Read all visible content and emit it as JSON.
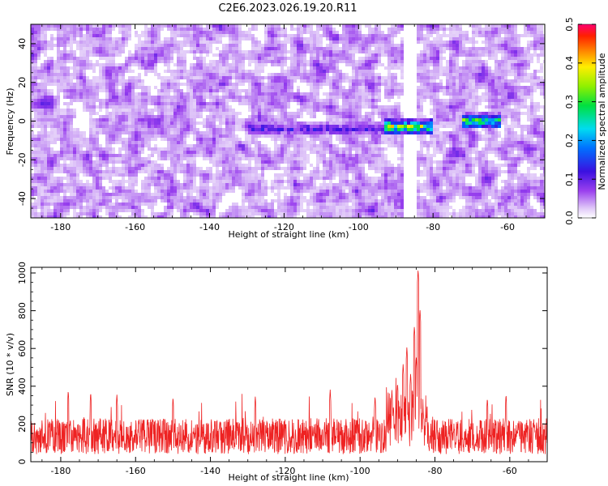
{
  "figure_title": "C2E6.2023.026.19.20.R11",
  "colors": {
    "snr_line": "#ee2222",
    "axis": "#000000",
    "background": "#ffffff"
  },
  "chart_data": [
    {
      "type": "heatmap",
      "name": "spectrogram",
      "xlabel": "Height of straight line (km)",
      "ylabel": "Frequency (Hz)",
      "xlim": [
        -188,
        -50
      ],
      "ylim": [
        -50,
        50
      ],
      "x_ticks": [
        -180,
        -160,
        -140,
        -120,
        -100,
        -80,
        -60
      ],
      "x_tick_labels": [
        "-180",
        "-160",
        "-140",
        "-120",
        "-100",
        "-80",
        "-60"
      ],
      "y_ticks": [
        -40,
        -20,
        0,
        20,
        40
      ],
      "y_tick_labels": [
        "-40",
        "-20",
        "0",
        "20",
        "40"
      ],
      "colorbar": {
        "label": "Normalized spectral amplitude",
        "range": [
          0.0,
          0.5
        ],
        "ticks": [
          0.0,
          0.1,
          0.2,
          0.3,
          0.4,
          0.5
        ],
        "tick_labels": [
          "0.0",
          "0.1",
          "0.2",
          "0.3",
          "0.4",
          "0.5"
        ]
      },
      "features": [
        {
          "description": "strong signal near 0 Hz",
          "x_range": [
            -93,
            -80
          ],
          "freq_center": -3,
          "peak_amplitude": 0.45
        },
        {
          "description": "moderate signal near 0 Hz",
          "x_range": [
            -72,
            -62
          ],
          "freq_center": 0,
          "peak_amplitude": 0.4
        },
        {
          "description": "weak band",
          "x_range": [
            -130,
            -93
          ],
          "freq_center": -4,
          "peak_amplitude": 0.15
        },
        {
          "description": "white vertical gap",
          "x_range": [
            -88,
            -84
          ]
        }
      ]
    },
    {
      "type": "line",
      "name": "snr",
      "xlabel": "Height of straight line (km)",
      "ylabel": "SNR (10 * v/v)",
      "xlim": [
        -188,
        -50
      ],
      "ylim": [
        0,
        1030
      ],
      "x_ticks": [
        -180,
        -160,
        -140,
        -120,
        -100,
        -80,
        -60
      ],
      "x_tick_labels": [
        "-180",
        "-160",
        "-140",
        "-120",
        "-100",
        "-80",
        "-60"
      ],
      "y_ticks": [
        0,
        200,
        400,
        600,
        800,
        1000
      ],
      "y_tick_labels": [
        "0",
        "200",
        "400",
        "600",
        "800",
        "1000"
      ],
      "baseline_mean": 135,
      "noise_max": 260,
      "peaks": [
        {
          "x": -84.5,
          "y": 1020
        },
        {
          "x": -84.0,
          "y": 810
        },
        {
          "x": -85.5,
          "y": 720
        },
        {
          "x": -87.5,
          "y": 610
        },
        {
          "x": -88.5,
          "y": 520
        },
        {
          "x": -90.0,
          "y": 420
        },
        {
          "x": -91.5,
          "y": 380
        },
        {
          "x": -85.0,
          "y": 560
        },
        {
          "x": -86.5,
          "y": 470
        },
        {
          "x": -178.0,
          "y": 380
        },
        {
          "x": -172.0,
          "y": 370
        },
        {
          "x": -165.0,
          "y": 360
        },
        {
          "x": -150.0,
          "y": 345
        },
        {
          "x": -128.0,
          "y": 350
        },
        {
          "x": -108.0,
          "y": 385
        },
        {
          "x": -96.0,
          "y": 350
        },
        {
          "x": -66.0,
          "y": 340
        },
        {
          "x": -61.0,
          "y": 360
        }
      ]
    }
  ]
}
